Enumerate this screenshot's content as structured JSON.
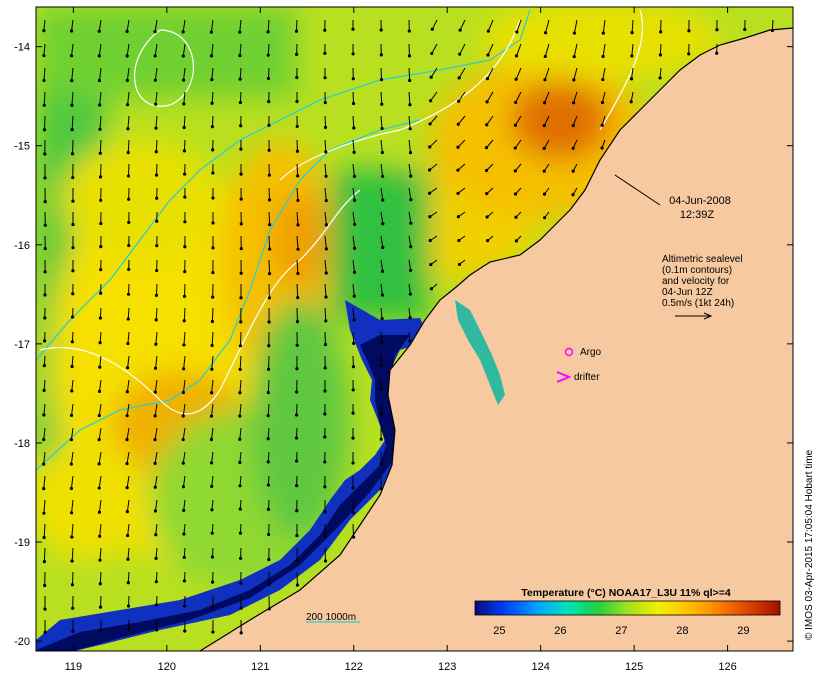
{
  "map": {
    "date_label": "04-Jun-2008",
    "time_label": "12:39Z",
    "longitude_ticks": [
      "119",
      "120",
      "121",
      "122",
      "123",
      "124",
      "125",
      "126"
    ],
    "latitude_ticks": [
      "-14",
      "-15",
      "-16",
      "-17",
      "-18",
      "-19",
      "-20"
    ],
    "lon_range": [
      118.6,
      126.7
    ],
    "lat_range": [
      -20.1,
      -13.6
    ],
    "annotation_lines": [
      "Altimetric sealevel",
      "(0.1m contours)",
      "and velocity for",
      "04-Jun 12Z",
      "0.5m/s (1kt 24h)"
    ],
    "legend": {
      "argo_label": "Argo",
      "drifter_label": "drifter",
      "isobath_label": "200  1000m"
    },
    "colorbar": {
      "title": "Temperature (°C) NOAA17_L3U 11% ql>=4",
      "ticks": [
        "25",
        "26",
        "27",
        "28",
        "29"
      ],
      "range": [
        24.6,
        29.6
      ],
      "colors": [
        "#0a0a7a",
        "#0040ff",
        "#00a0ff",
        "#00e0c0",
        "#20d040",
        "#a0e020",
        "#f0f000",
        "#ffc000",
        "#ff8000",
        "#e04000",
        "#a01000"
      ]
    },
    "credit": "© IMOS 03-Apr-2015 17:05:04 Hobart time",
    "colors": {
      "land": "#f7c9a0",
      "contour": "#ffffff",
      "isobath": "#33cccc",
      "argo": "#ff00ff",
      "drifter": "#ff00ff"
    }
  }
}
